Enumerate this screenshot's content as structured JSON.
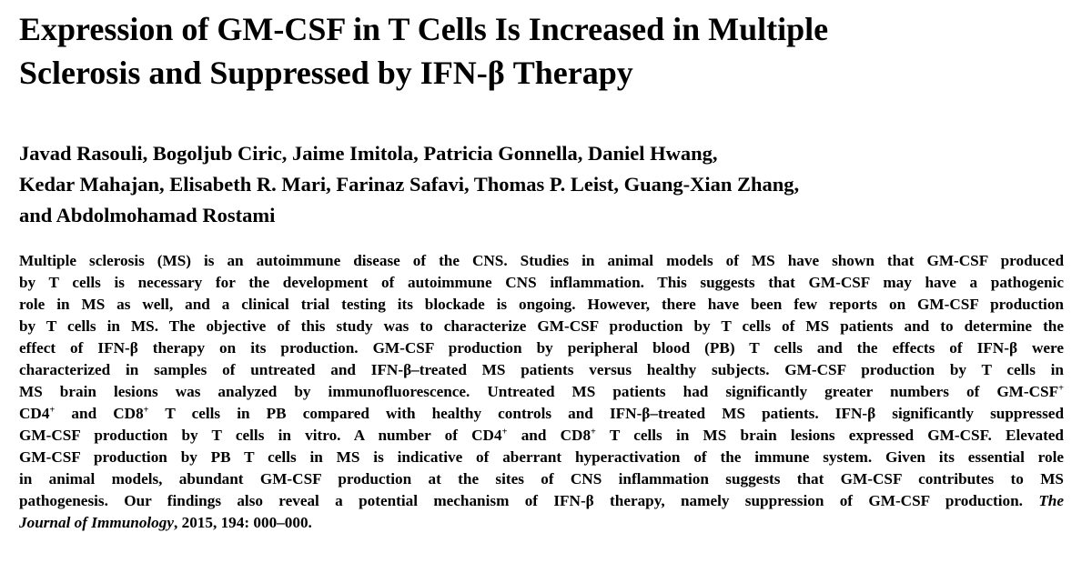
{
  "title_lines": [
    "Expression of GM-CSF in T Cells Is Increased in Multiple",
    "Sclerosis and Suppressed by IFN-β Therapy"
  ],
  "author_lines": [
    "Javad Rasouli, Bogoljub Ciric, Jaime Imitola, Patricia Gonnella, Daniel Hwang,",
    "Kedar Mahajan, Elisabeth R. Mari, Farinaz Safavi, Thomas P. Leist, Guang-Xian Zhang,",
    "and Abdolmohamad Rostami"
  ],
  "abstract": {
    "l1": "Multiple sclerosis (MS) is an autoimmune disease of the CNS. Studies in animal models of MS have shown that GM-CSF produced",
    "l2": "by T cells is necessary for the development of autoimmune CNS inflammation. This suggests that GM-CSF may have a pathogenic",
    "l3": "role in MS as well, and a clinical trial testing its blockade is ongoing. However, there have been few reports on GM-CSF production",
    "l4": "by T cells in MS. The objective of this study was to characterize GM-CSF production by T cells of MS patients and to determine the",
    "l5": "effect of IFN-β therapy on its production. GM-CSF production by peripheral blood (PB) T cells and the effects of IFN-β were",
    "l6": "characterized in samples of untreated and IFN-β–treated MS patients versus healthy subjects. GM-CSF production by T cells in",
    "l7": "MS brain lesions was analyzed by immunofluorescence. Untreated MS patients had significantly greater numbers of GM-CSF",
    "l8a": "CD4",
    "l8b": " and CD8",
    "l8c": " T cells in PB compared with healthy controls and IFN-β–treated MS patients. IFN-β significantly suppressed",
    "l9a": "GM-CSF production by T cells in vitro. A number of CD4",
    "l9b": " and CD8",
    "l9c": " T cells in MS brain lesions expressed GM-CSF. Elevated",
    "l10": "GM-CSF production by PB T cells in MS is indicative of aberrant hyperactivation of the immune system. Given its essential role",
    "l11": "in animal models, abundant GM-CSF production at the sites of CNS inflammation suggests that GM-CSF contributes to MS",
    "l12a": "pathogenesis. Our findings also reveal a potential mechanism of IFN-β therapy, namely suppression of GM-CSF production.",
    "l12b": "The",
    "l13a": "Journal of Immunology",
    "l13b": ", 2015, 194: 000–000.",
    "sup": "+"
  }
}
